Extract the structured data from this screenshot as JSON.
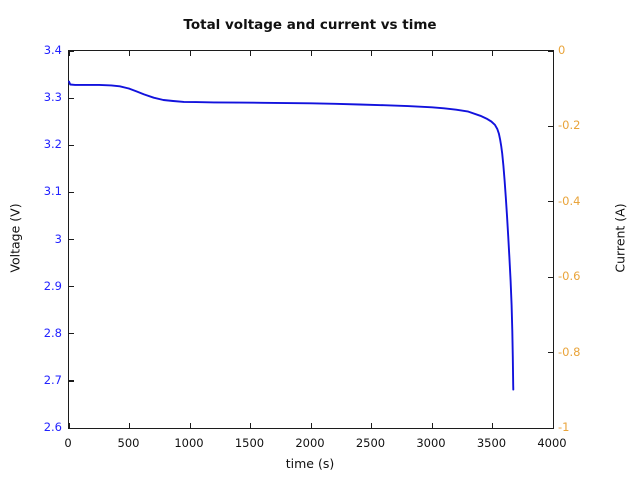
{
  "chart_data": {
    "type": "line",
    "title": "Total voltage and current vs time",
    "xlabel": "time (s)",
    "ylabel_left": "Voltage (V)",
    "ylabel_right": "Current (A)",
    "xlim": [
      0,
      4000
    ],
    "ylim_left": [
      2.6,
      3.4
    ],
    "ylim_right": [
      -1,
      0
    ],
    "grid": false,
    "legend_position": "none",
    "xticks": [
      {
        "v": 0,
        "label": "0"
      },
      {
        "v": 500,
        "label": "500"
      },
      {
        "v": 1000,
        "label": "1000"
      },
      {
        "v": 1500,
        "label": "1500"
      },
      {
        "v": 2000,
        "label": "2000"
      },
      {
        "v": 2500,
        "label": "2500"
      },
      {
        "v": 3000,
        "label": "3000"
      },
      {
        "v": 3500,
        "label": "3500"
      },
      {
        "v": 4000,
        "label": "4000"
      }
    ],
    "yticks_left": [
      {
        "v": 2.6,
        "label": "2.6"
      },
      {
        "v": 2.7,
        "label": "2.7"
      },
      {
        "v": 2.8,
        "label": "2.8"
      },
      {
        "v": 2.9,
        "label": "2.9"
      },
      {
        "v": 3.0,
        "label": "3"
      },
      {
        "v": 3.1,
        "label": "3.1"
      },
      {
        "v": 3.2,
        "label": "3.2"
      },
      {
        "v": 3.3,
        "label": "3.3"
      },
      {
        "v": 3.4,
        "label": "3.4"
      }
    ],
    "yticks_right": [
      {
        "v": 0,
        "label": "0"
      },
      {
        "v": -0.2,
        "label": "-0.2"
      },
      {
        "v": -0.4,
        "label": "-0.4"
      },
      {
        "v": -0.6,
        "label": "-0.6"
      },
      {
        "v": -0.8,
        "label": "-0.8"
      },
      {
        "v": -1,
        "label": "-1"
      }
    ],
    "colors": {
      "voltage_line": "#1212dd",
      "voltage_axis_text": "#2222ff",
      "current_axis_text": "#e9a43b",
      "tick_mark": "#1c1c1c",
      "title_text": "#111111"
    },
    "series": [
      {
        "name": "Total voltage",
        "axis": "left",
        "points": [
          [
            0,
            3.335
          ],
          [
            10,
            3.329
          ],
          [
            50,
            3.328
          ],
          [
            150,
            3.328
          ],
          [
            250,
            3.328
          ],
          [
            350,
            3.327
          ],
          [
            420,
            3.325
          ],
          [
            500,
            3.32
          ],
          [
            560,
            3.314
          ],
          [
            620,
            3.308
          ],
          [
            700,
            3.301
          ],
          [
            780,
            3.296
          ],
          [
            860,
            3.294
          ],
          [
            950,
            3.292
          ],
          [
            1050,
            3.2915
          ],
          [
            1200,
            3.291
          ],
          [
            1400,
            3.2905
          ],
          [
            1600,
            3.29
          ],
          [
            1800,
            3.2895
          ],
          [
            2000,
            3.289
          ],
          [
            2200,
            3.288
          ],
          [
            2400,
            3.2865
          ],
          [
            2600,
            3.285
          ],
          [
            2800,
            3.283
          ],
          [
            3000,
            3.2805
          ],
          [
            3100,
            3.2785
          ],
          [
            3200,
            3.2755
          ],
          [
            3300,
            3.2715
          ],
          [
            3400,
            3.2625
          ],
          [
            3450,
            3.2565
          ],
          [
            3490,
            3.2505
          ],
          [
            3520,
            3.2435
          ],
          [
            3540,
            3.2345
          ],
          [
            3553,
            3.2245
          ],
          [
            3563,
            3.2125
          ],
          [
            3572,
            3.1985
          ],
          [
            3580,
            3.1825
          ],
          [
            3590,
            3.1565
          ],
          [
            3600,
            3.1255
          ],
          [
            3610,
            3.0895
          ],
          [
            3620,
            3.0505
          ],
          [
            3630,
            3.0075
          ],
          [
            3640,
            2.9615
          ],
          [
            3650,
            2.9125
          ],
          [
            3658,
            2.8605
          ],
          [
            3664,
            2.8065
          ],
          [
            3668,
            2.7505
          ],
          [
            3671,
            2.6905
          ],
          [
            3672,
            2.6815
          ]
        ]
      }
    ]
  }
}
